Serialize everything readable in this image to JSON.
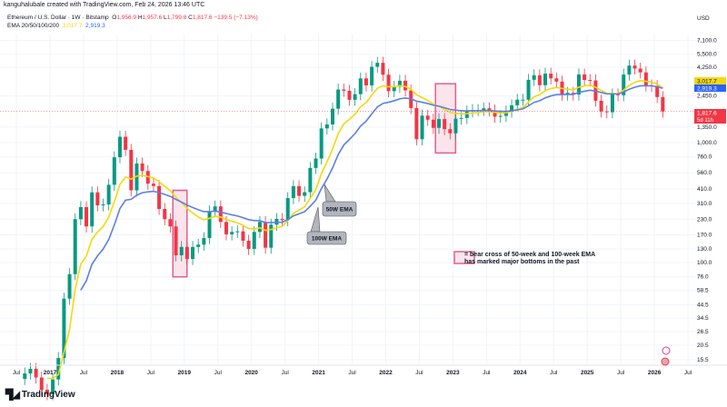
{
  "header": {
    "creator": "kanguhalubale created with TradingView.com, Feb 24, 2026 13:46 UTC",
    "symbol": "Ethereum / U.S. Dollar · 1W · Bitstamp",
    "open_label": "O",
    "open": "1,956.9",
    "high_label": "H",
    "high": "1,957.6",
    "low_label": "L",
    "low": "1,799.8",
    "close_label": "C",
    "close": "1,817.6",
    "change": "−139.5 (−7.13%)",
    "ema_label": "EMA 20/50/100/200",
    "ema_value_1": "3,017.7",
    "ema_value_2": "2,919.3"
  },
  "price_scale": {
    "currency": "USD",
    "ticks": [
      "7,100.0",
      "5,500.0",
      "4,250.0",
      "2,450.0",
      "1,350.0",
      "1,000.0",
      "760.0",
      "560.0",
      "410.0",
      "310.0",
      "230.0",
      "170.0",
      "130.0",
      "100.0",
      "76.0",
      "58.5",
      "44.5",
      "34.5",
      "26.5",
      "20.5",
      "15.5"
    ],
    "labels": [
      {
        "text": "3,017.7",
        "color": "#f5d90a",
        "value": 3017.7
      },
      {
        "text": "2,919.3",
        "color": "#2962ff",
        "value": 2919.3
      },
      {
        "text": "1,817.6",
        "sub": "5d 11h",
        "color": "#f23645",
        "value": 1817.6
      }
    ]
  },
  "time_scale": {
    "ticks": [
      {
        "label": "Jul",
        "t": 2016.5
      },
      {
        "label": "2017",
        "t": 2017
      },
      {
        "label": "Jul",
        "t": 2017.5
      },
      {
        "label": "2018",
        "t": 2018
      },
      {
        "label": "Jul",
        "t": 2018.5
      },
      {
        "label": "2019",
        "t": 2019
      },
      {
        "label": "Jul",
        "t": 2019.5
      },
      {
        "label": "2020",
        "t": 2020
      },
      {
        "label": "Jul",
        "t": 2020.5
      },
      {
        "label": "2021",
        "t": 2021
      },
      {
        "label": "Jul",
        "t": 2021.5
      },
      {
        "label": "2022",
        "t": 2022
      },
      {
        "label": "Jul",
        "t": 2022.5
      },
      {
        "label": "2023",
        "t": 2023
      },
      {
        "label": "Jul",
        "t": 2023.5
      },
      {
        "label": "2024",
        "t": 2024
      },
      {
        "label": "Jul",
        "t": 2024.5
      },
      {
        "label": "2025",
        "t": 2025
      },
      {
        "label": "Jul",
        "t": 2025.5
      },
      {
        "label": "2026",
        "t": 2026
      },
      {
        "label": "Jul",
        "t": 2026.5
      }
    ]
  },
  "chart_data": {
    "type": "candlestick",
    "scale": "log",
    "grid": true,
    "ylim": [
      12,
      9000
    ],
    "xlim": [
      2016.25,
      2026.75
    ],
    "start": "2016-08",
    "closes": [
      11.9,
      13,
      11,
      8.7,
      8,
      10.6,
      16,
      50,
      80,
      230,
      290,
      200,
      385,
      300,
      305,
      445,
      755,
      1120,
      870,
      400,
      670,
      580,
      455,
      435,
      280,
      230,
      200,
      115,
      135,
      107,
      135,
      141,
      160,
      268,
      294,
      218,
      172,
      180,
      182,
      152,
      130,
      180,
      218,
      133,
      207,
      231,
      226,
      345,
      434,
      360,
      386,
      615,
      737,
      1314,
      1418,
      1918,
      2773,
      2707,
      2275,
      2536,
      3433,
      3000,
      4288,
      4630,
      3683,
      2688,
      2920,
      3282,
      2727,
      1942,
      1067,
      1680,
      1553,
      1328,
      1572,
      1296,
      1196,
      1585,
      1605,
      1822,
      1870,
      1874,
      1934,
      1857,
      1645,
      1671,
      1816,
      2050,
      2282,
      2283,
      3340,
      3647,
      3014,
      3760,
      3435,
      3230,
      2513,
      2603,
      2518,
      3705,
      3332,
      3300,
      2237,
      1822,
      1793,
      2528,
      2485,
      3697,
      4391,
      4145,
      3850,
      3000,
      2970,
      2400,
      1817.6
    ],
    "series": [
      {
        "name": "50W EMA",
        "color": "#f5d90a"
      },
      {
        "name": "100W EMA",
        "color": "#5b7fe8"
      }
    ],
    "up_color": "#089981",
    "down_color": "#f23645",
    "highlights": [
      {
        "from": 2018.83,
        "to": 2019.04,
        "low": 76,
        "high": 400
      },
      {
        "from": 2022.74,
        "to": 2023.04,
        "low": 820,
        "high": 3100
      }
    ],
    "callouts": [
      {
        "text": "50W EMA"
      },
      {
        "text": "100W EMA"
      }
    ],
    "annotation": {
      "line1": "= bear cross of 50-week and 100-week EMA",
      "line2": "has marked major bottoms in the past"
    }
  },
  "branding": {
    "logo_text": "TradingView"
  }
}
